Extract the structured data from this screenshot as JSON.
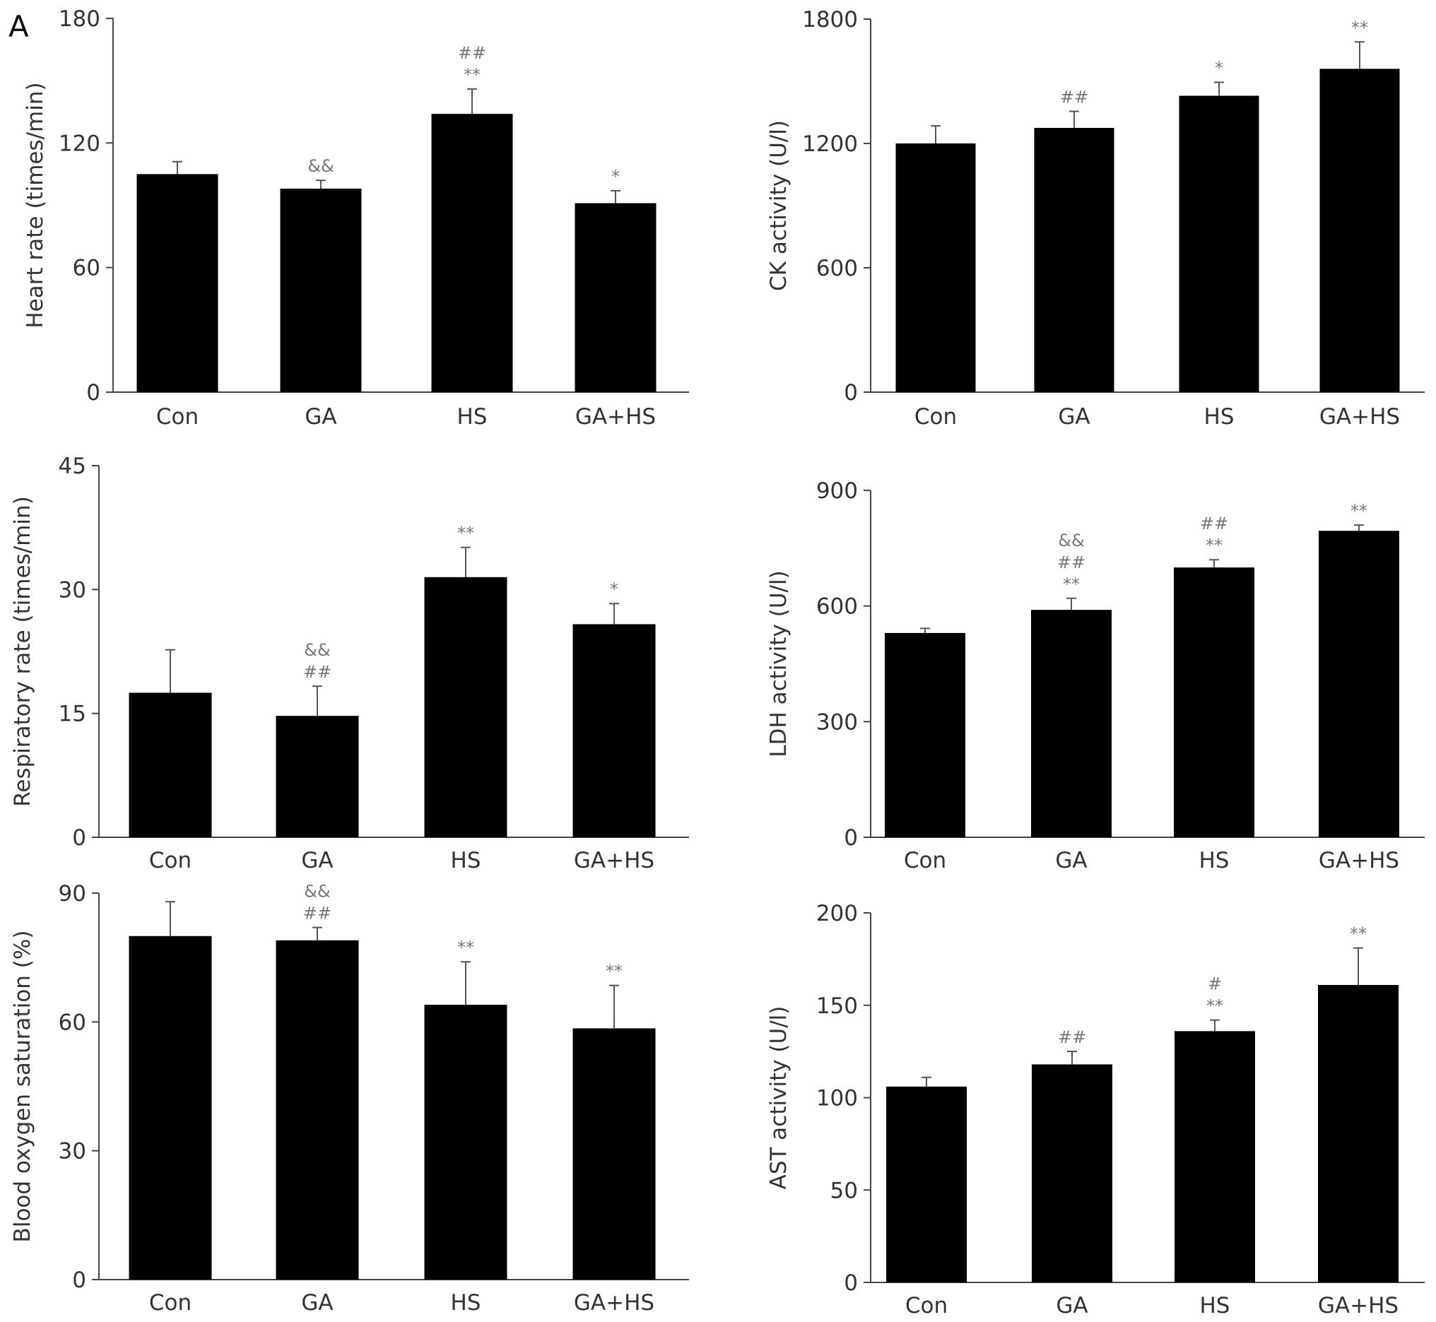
{
  "panel_label": "A",
  "colors": {
    "bar": "#000000",
    "axis": "#444444",
    "text": "#333333",
    "annotation": "#777777"
  },
  "chart_data": [
    {
      "type": "bar",
      "ylabel": "Heart rate (times/min)",
      "categories": [
        "Con",
        "GA",
        "HS",
        "GA+HS"
      ],
      "values": [
        105,
        98,
        134,
        91
      ],
      "errors": [
        6,
        4,
        12,
        6
      ],
      "annotations": [
        [],
        [
          "&&"
        ],
        [
          "##",
          "**"
        ],
        [
          "*"
        ]
      ],
      "ylim": [
        0,
        180
      ],
      "yticks": [
        0,
        60,
        120,
        180
      ]
    },
    {
      "type": "bar",
      "ylabel": "CK activity (U/l)",
      "categories": [
        "Con",
        "GA",
        "HS",
        "GA+HS"
      ],
      "values": [
        1200,
        1275,
        1430,
        1560
      ],
      "errors": [
        85,
        80,
        65,
        130
      ],
      "annotations": [
        [],
        [
          "##"
        ],
        [
          "*"
        ],
        [
          "**"
        ]
      ],
      "ylim": [
        0,
        1800
      ],
      "yticks": [
        0,
        600,
        1200,
        1800
      ]
    },
    {
      "type": "bar",
      "ylabel": "Respiratory rate (times/min)",
      "categories": [
        "Con",
        "GA",
        "HS",
        "GA+HS"
      ],
      "values": [
        17.5,
        14.7,
        31.5,
        25.8
      ],
      "errors": [
        5.2,
        3.6,
        3.6,
        2.5
      ],
      "annotations": [
        [],
        [
          "&&",
          "##"
        ],
        [
          "**"
        ],
        [
          "*"
        ]
      ],
      "ylim": [
        0,
        45
      ],
      "yticks": [
        0,
        15,
        30,
        45
      ]
    },
    {
      "type": "bar",
      "ylabel": "LDH activity (U/l)",
      "categories": [
        "Con",
        "GA",
        "HS",
        "GA+HS"
      ],
      "values": [
        530,
        590,
        700,
        795
      ],
      "errors": [
        12,
        30,
        20,
        15
      ],
      "annotations": [
        [],
        [
          "&&",
          "##",
          "**"
        ],
        [
          "##",
          "**"
        ],
        [
          "**"
        ]
      ],
      "ylim": [
        0,
        900
      ],
      "yticks": [
        0,
        300,
        600,
        900
      ]
    },
    {
      "type": "bar",
      "ylabel": "Blood oxygen saturation (%)",
      "categories": [
        "Con",
        "GA",
        "HS",
        "GA+HS"
      ],
      "values": [
        80,
        79,
        64,
        58.5
      ],
      "errors": [
        8,
        3,
        10,
        10
      ],
      "annotations": [
        [],
        [
          "&&",
          "##"
        ],
        [
          "**"
        ],
        [
          "**"
        ]
      ],
      "ylim": [
        0,
        90
      ],
      "yticks": [
        0,
        30,
        60,
        90
      ]
    },
    {
      "type": "bar",
      "ylabel": "AST activity (U/l)",
      "categories": [
        "Con",
        "GA",
        "HS",
        "GA+HS"
      ],
      "values": [
        106,
        118,
        136,
        161
      ],
      "errors": [
        5,
        7,
        6,
        20
      ],
      "annotations": [
        [],
        [
          "##"
        ],
        [
          "#",
          "**"
        ],
        [
          "**"
        ]
      ],
      "ylim": [
        0,
        200
      ],
      "yticks": [
        0,
        50,
        100,
        150,
        200
      ]
    }
  ]
}
